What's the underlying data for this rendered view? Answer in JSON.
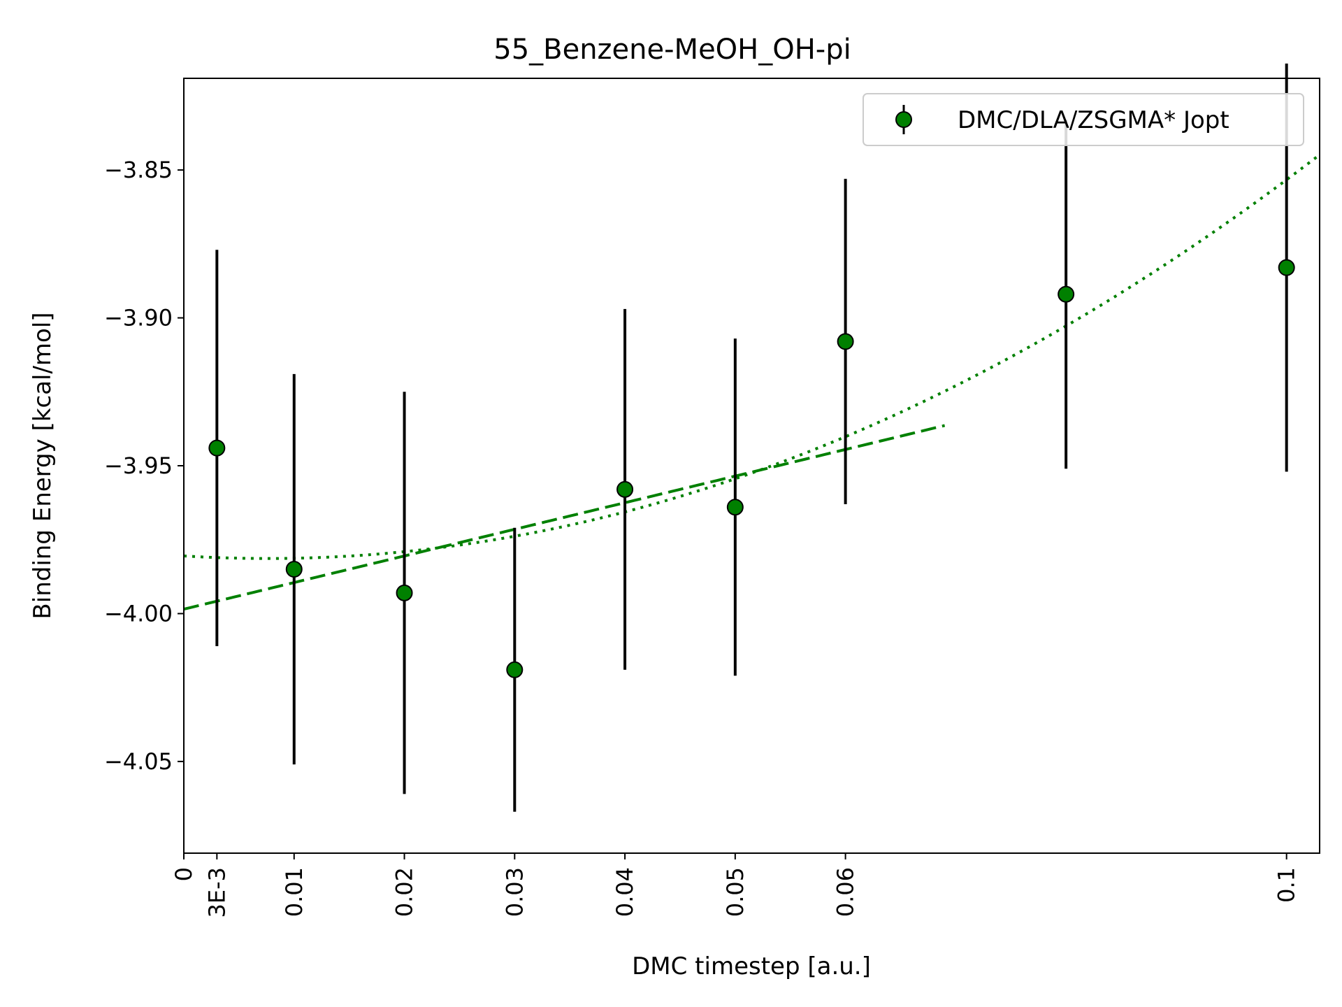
{
  "chart_data": {
    "type": "scatter",
    "title": "55_Benzene-MeOH_OH-pi",
    "xlabel": "DMC timestep [a.u.]",
    "ylabel": "Binding Energy [kcal/mol]",
    "xlim": [
      0,
      0.103
    ],
    "ylim": [
      -4.081,
      -3.819
    ],
    "x_ticks": [
      {
        "value": 0,
        "label": "0"
      },
      {
        "value": 0.003,
        "label": "3E-3"
      },
      {
        "value": 0.01,
        "label": "0.01"
      },
      {
        "value": 0.02,
        "label": "0.02"
      },
      {
        "value": 0.03,
        "label": "0.03"
      },
      {
        "value": 0.04,
        "label": "0.04"
      },
      {
        "value": 0.05,
        "label": "0.05"
      },
      {
        "value": 0.06,
        "label": "0.06"
      },
      {
        "value": 0.1,
        "label": "0.1"
      }
    ],
    "y_ticks": [
      {
        "value": -3.85,
        "label": "−3.85"
      },
      {
        "value": -3.9,
        "label": "−3.90"
      },
      {
        "value": -3.95,
        "label": "−3.95"
      },
      {
        "value": -4.0,
        "label": "−4.00"
      },
      {
        "value": -4.05,
        "label": "−4.05"
      }
    ],
    "grid": false,
    "legend": {
      "position": "top-right",
      "entries": [
        "DMC/DLA/ZSGMA* Jopt"
      ]
    },
    "series": [
      {
        "name": "DMC/DLA/ZSGMA* Jopt",
        "marker": "circle",
        "color": "#008000",
        "edge_color": "#000000",
        "errorbar_color": "#000000",
        "points": [
          {
            "x": 0.003,
            "y": -3.944,
            "err": 0.067
          },
          {
            "x": 0.01,
            "y": -3.985,
            "err": 0.066
          },
          {
            "x": 0.02,
            "y": -3.993,
            "err": 0.068
          },
          {
            "x": 0.03,
            "y": -4.019,
            "err": 0.048
          },
          {
            "x": 0.04,
            "y": -3.958,
            "err": 0.061
          },
          {
            "x": 0.05,
            "y": -3.964,
            "err": 0.057
          },
          {
            "x": 0.06,
            "y": -3.908,
            "err": 0.055
          },
          {
            "x": 0.08,
            "y": -3.892,
            "err": 0.059
          },
          {
            "x": 0.1,
            "y": -3.883,
            "err": 0.069
          }
        ]
      }
    ],
    "fits": [
      {
        "kind": "linear",
        "style": "dashed",
        "color": "#008000",
        "x_range": [
          0,
          0.069
        ],
        "params": {
          "a": -3.9985,
          "b": 0.9
        }
      },
      {
        "kind": "quadratic",
        "style": "dotted",
        "color": "#008000",
        "x_range": [
          0,
          0.103
        ],
        "params": {
          "a": -3.9805,
          "b": -0.228,
          "c": 15.0
        }
      }
    ]
  }
}
